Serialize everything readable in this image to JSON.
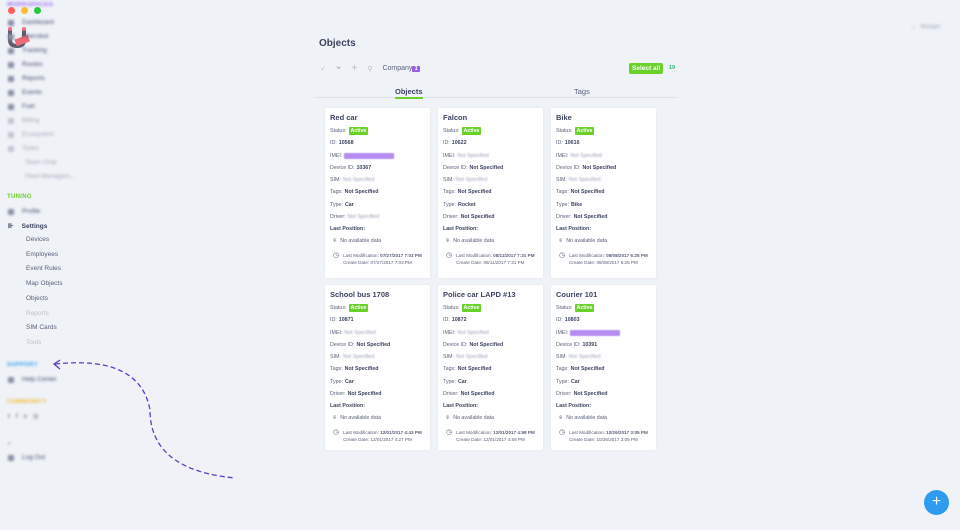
{
  "window": {
    "dots": [
      "#ff5f57",
      "#febc2e",
      "#28c840"
    ]
  },
  "logo": {
    "text": "beta"
  },
  "topright": {
    "user": "Manager"
  },
  "sidebar": {
    "workspaces_label": "WORKSPACES",
    "workspaces": [
      "Dashboard",
      "Ubersbot",
      "Tracking",
      "Routes",
      "Reports",
      "Events",
      "Fuel",
      "Billing",
      "Ecosystem",
      "Tasks",
      "Team Chat",
      "Fleet Managem..."
    ],
    "tuning_label": "TUNING",
    "profile": "Profile",
    "settings": "Settings",
    "settings_items": [
      "Devices",
      "Employees",
      "Event Rules",
      "Map Objects",
      "Objects",
      "Reports",
      "SIM Cards",
      "Tools"
    ],
    "support_label": "SUPPORT",
    "help": "Help Center",
    "community_label": "COMMUNITY",
    "logout": "Log Out"
  },
  "page": {
    "title": "Objects",
    "company": "Company",
    "company_count": "1",
    "select_all": "Select all",
    "count": "19",
    "tabs": [
      "Objects",
      "Tags"
    ]
  },
  "labels": {
    "status": "Status:",
    "id": "ID:",
    "imei": "IMEI:",
    "device": "Device ID:",
    "sim": "SIM:",
    "tags": "Tags:",
    "type": "Type:",
    "driver": "Driver:",
    "last_pos": "Last Position:",
    "no_data": "No available data",
    "last_mod": "Last Modification:",
    "create": "Create Date:"
  },
  "cards": [
    {
      "name": "Red car",
      "status": "Active",
      "id": "10568",
      "imei": "",
      "device": "10367",
      "sim": "Not Specified",
      "tags": "Not Specified",
      "type": "Car",
      "driver": "Not Specified",
      "last_mod": "07/27/2017 7:03 PM",
      "create": "07/27/2017 7:03 PM"
    },
    {
      "name": "Falcon",
      "status": "Active",
      "id": "10622",
      "imei": "Not Specified",
      "device": "Not Specified",
      "sim": "Not Specified",
      "tags": "Not Specified",
      "type": "Rocket",
      "driver": "Not Specified",
      "last_mod": "08/11/2017 7:31 PM",
      "create": "08/11/2017 7:31 PM"
    },
    {
      "name": "Bike",
      "status": "Active",
      "id": "10616",
      "imei": "Not Specified",
      "device": "Not Specified",
      "sim": "Not Specified",
      "tags": "Not Specified",
      "type": "Bike",
      "driver": "Not Specified",
      "last_mod": "08/08/2017 6:25 PM",
      "create": "08/08/2017 6:25 PM"
    },
    {
      "name": "School bus 1708",
      "status": "Active",
      "id": "10871",
      "imei": "Not Specified",
      "device": "Not Specified",
      "sim": "Not Specified",
      "tags": "Not Specified",
      "type": "Car",
      "driver": "Not Specified",
      "last_mod": "12/01/2017 4:43 PM",
      "create": "12/01/2017 4:27 PM"
    },
    {
      "name": "Police car LAPD #13",
      "status": "Active",
      "id": "10872",
      "imei": "Not Specified",
      "device": "Not Specified",
      "sim": "Not Specified",
      "tags": "Not Specified",
      "type": "Car",
      "driver": "Not Specified",
      "last_mod": "12/01/2017 4:58 PM",
      "create": "12/01/2017 4:58 PM"
    },
    {
      "name": "Courier 101",
      "status": "Active",
      "id": "10803",
      "imei": "",
      "device": "10391",
      "sim": "Not Specified",
      "tags": "Not Specified",
      "type": "Car",
      "driver": "Not Specified",
      "last_mod": "10/26/2017 3:05 PM",
      "create": "10/26/2017 3:05 PM"
    }
  ],
  "fab": {
    "label": "+"
  }
}
